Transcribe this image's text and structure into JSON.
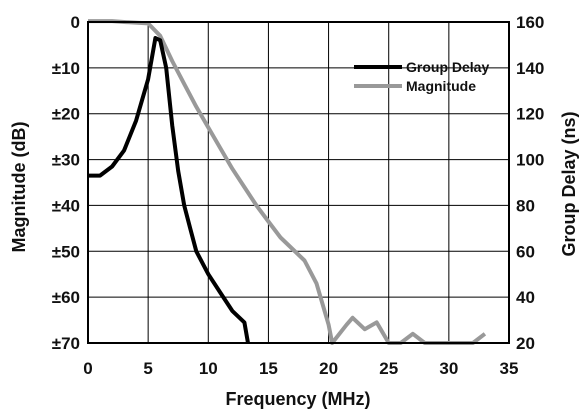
{
  "chart_data": {
    "type": "line",
    "xlabel": "Frequency (MHz)",
    "ylabel_left": "Magnitude (dB)",
    "ylabel_right": "Group Delay (ns)",
    "xlim": [
      0,
      35
    ],
    "ylim_left": [
      -70,
      0
    ],
    "ylim_right": [
      20,
      160
    ],
    "grid": true,
    "legend_position": "top-right",
    "x_ticks": [
      "0",
      "5",
      "10",
      "15",
      "20",
      "25",
      "30",
      "35"
    ],
    "y_left_ticks": [
      "0",
      "±10",
      "±20",
      "±30",
      "±40",
      "±50",
      "±60",
      "±70"
    ],
    "y_right_ticks": [
      "160",
      "140",
      "120",
      "100",
      "80",
      "60",
      "40",
      "20"
    ],
    "series": [
      {
        "name": "Group Delay",
        "axis": "right",
        "color": "#000000",
        "points": [
          [
            0,
            93
          ],
          [
            1,
            93
          ],
          [
            2,
            97
          ],
          [
            3,
            104
          ],
          [
            4,
            117
          ],
          [
            5,
            135
          ],
          [
            5.6,
            153
          ],
          [
            6,
            152
          ],
          [
            6.5,
            140
          ],
          [
            7,
            115
          ],
          [
            7.5,
            95
          ],
          [
            8,
            80
          ],
          [
            8.5,
            70
          ],
          [
            9,
            60
          ],
          [
            10,
            50
          ],
          [
            11,
            42
          ],
          [
            12,
            34
          ],
          [
            13,
            29
          ],
          [
            13.3,
            20
          ]
        ]
      },
      {
        "name": "Magnitude",
        "axis": "left",
        "color": "#999999",
        "points": [
          [
            0,
            0.2
          ],
          [
            2,
            0.2
          ],
          [
            3,
            0
          ],
          [
            5,
            -0.3
          ],
          [
            6,
            -3
          ],
          [
            7,
            -8.5
          ],
          [
            8,
            -13.5
          ],
          [
            9,
            -18.5
          ],
          [
            10,
            -23
          ],
          [
            11,
            -27.5
          ],
          [
            12,
            -32
          ],
          [
            13,
            -36
          ],
          [
            14,
            -40
          ],
          [
            15,
            -43.5
          ],
          [
            16,
            -47
          ],
          [
            17,
            -49.5
          ],
          [
            18,
            -52
          ],
          [
            19,
            -57
          ],
          [
            20,
            -66
          ],
          [
            20.3,
            -70
          ],
          [
            21.5,
            -66
          ],
          [
            22,
            -64.5
          ],
          [
            23,
            -67
          ],
          [
            24,
            -65.5
          ],
          [
            25,
            -70
          ],
          [
            26,
            -70
          ],
          [
            27,
            -68
          ],
          [
            28,
            -70
          ],
          [
            29,
            -70
          ],
          [
            30,
            -70
          ],
          [
            31,
            -70
          ],
          [
            32,
            -70
          ],
          [
            33,
            -68
          ]
        ]
      }
    ]
  }
}
